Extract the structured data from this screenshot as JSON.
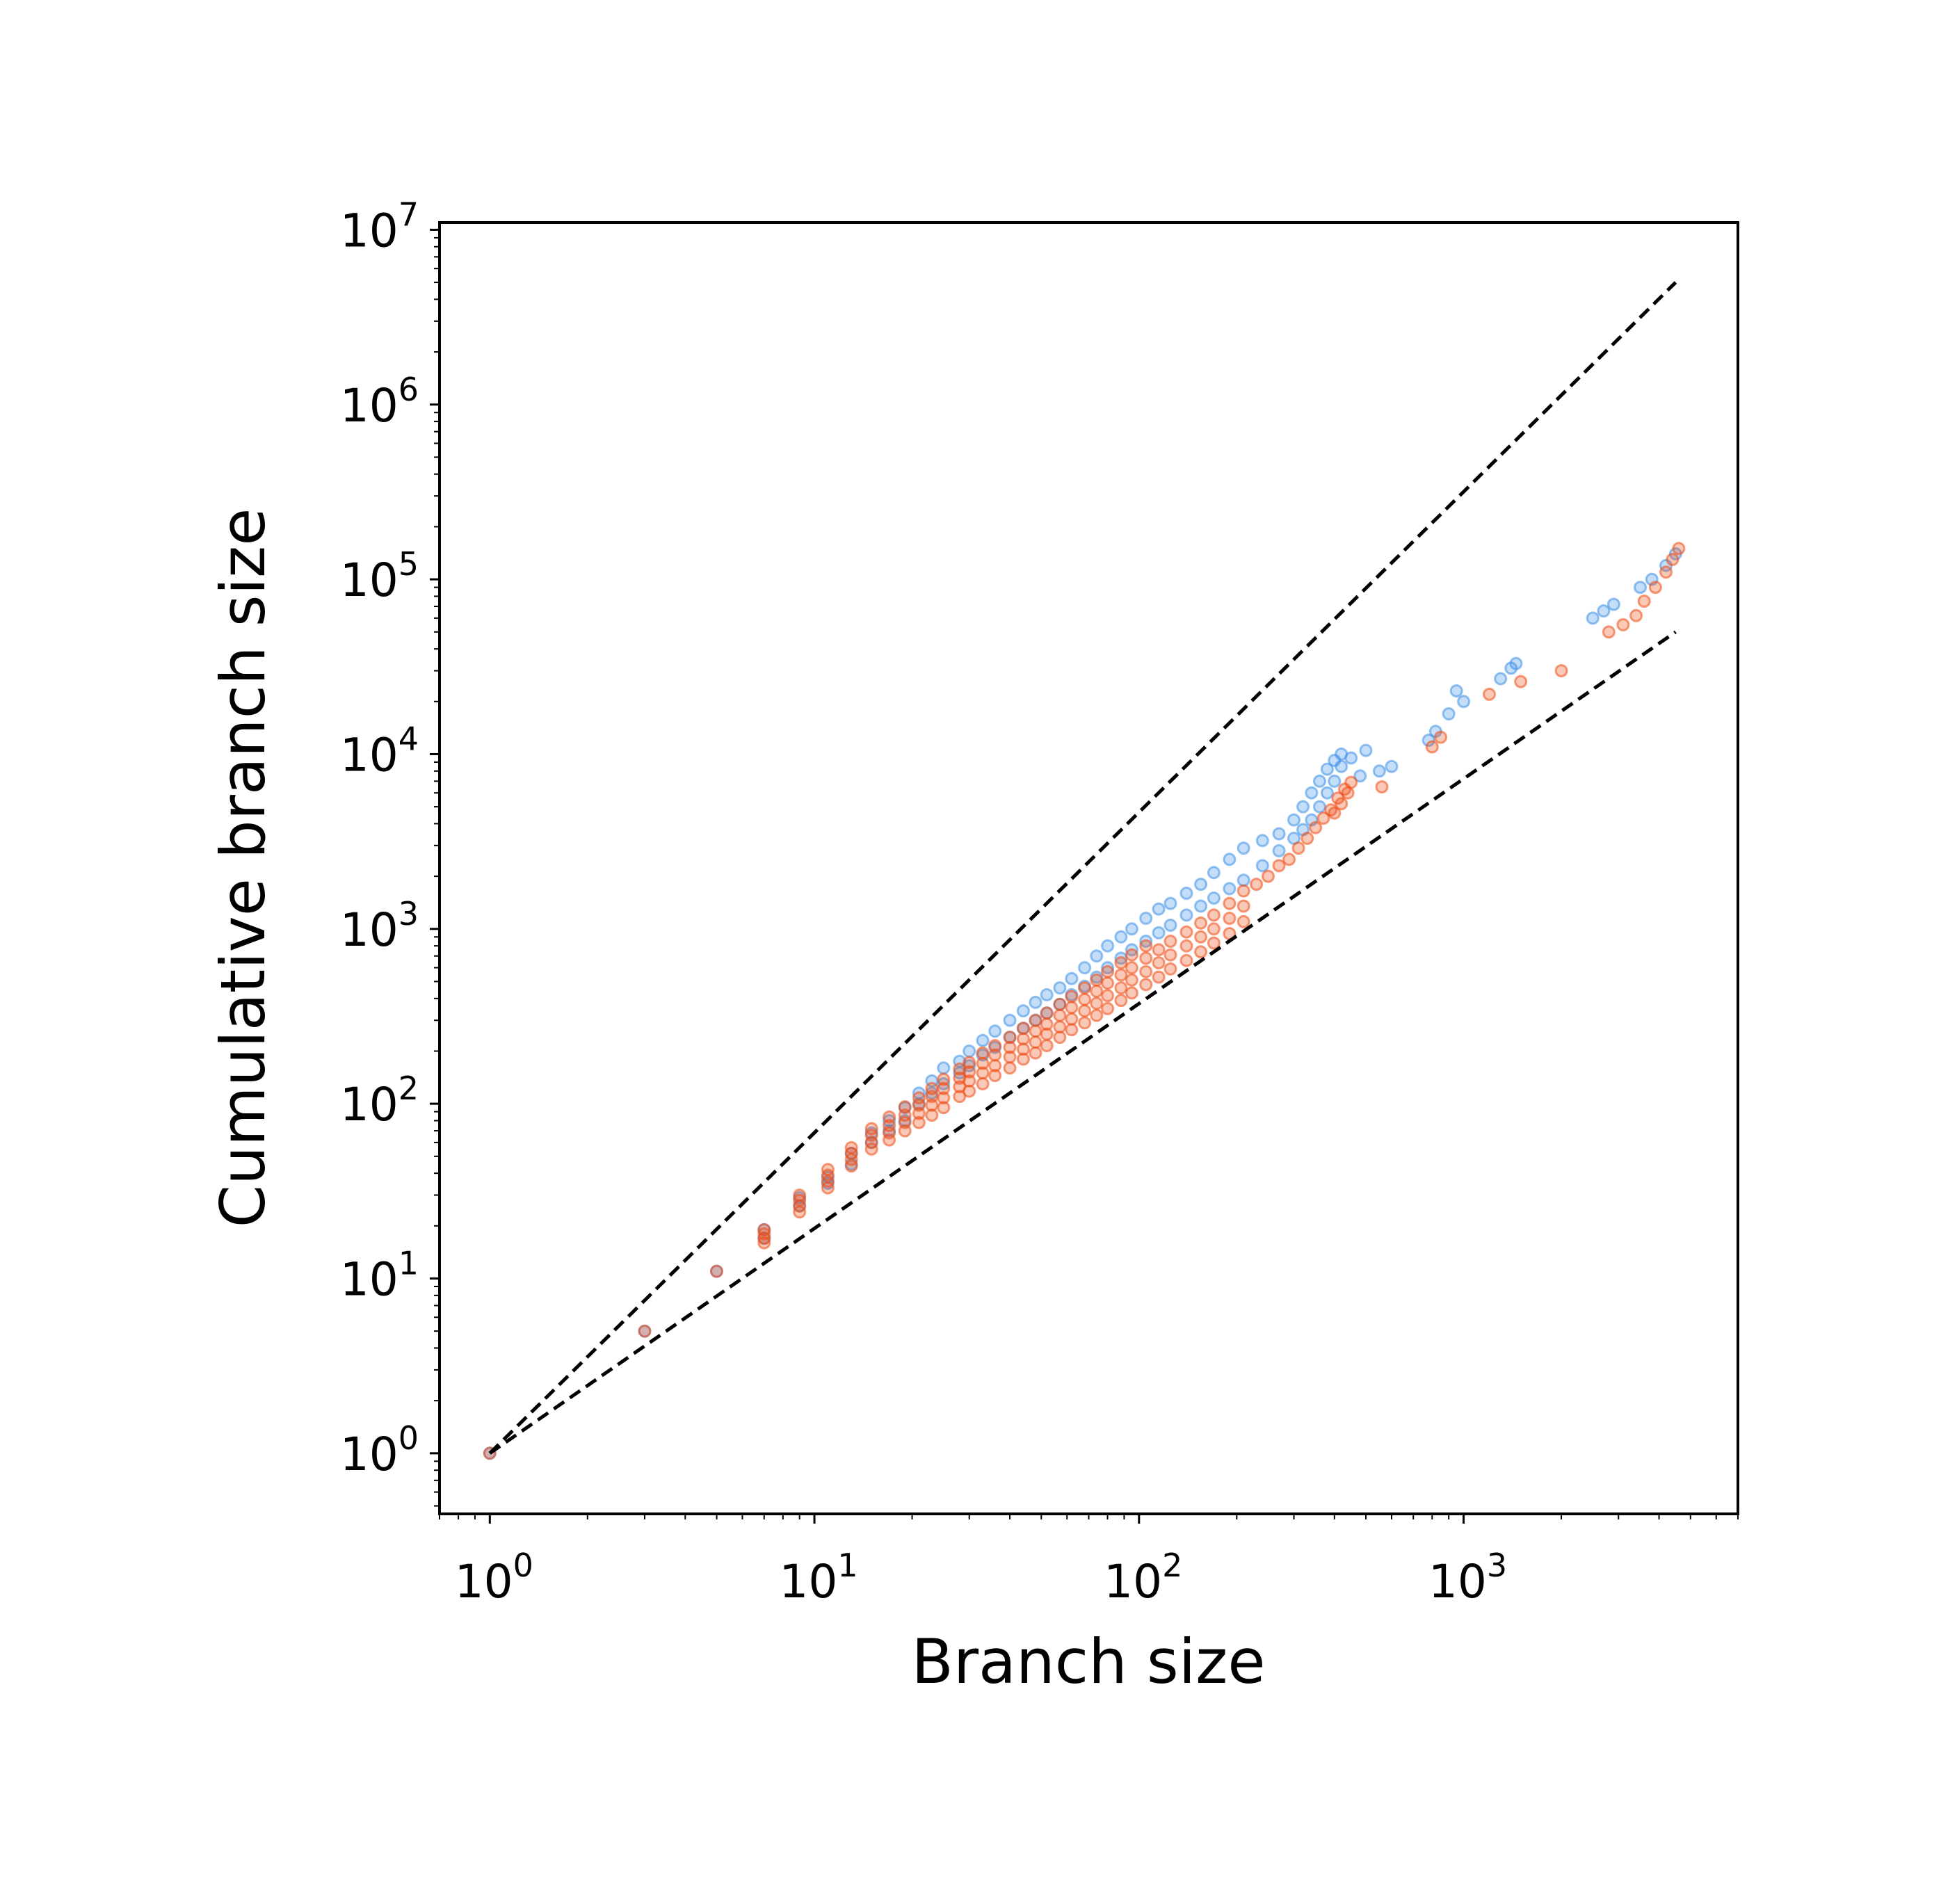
{
  "chart_data": {
    "type": "scatter",
    "title": "",
    "xlabel": "Branch size",
    "ylabel": "Cumulative branch size",
    "xscale": "log",
    "yscale": "log",
    "xlim": [
      0.7,
      7000
    ],
    "ylim": [
      0.45,
      11000000
    ],
    "x_ticks": [
      {
        "base": "10",
        "exp": "0"
      },
      {
        "base": "10",
        "exp": "1"
      },
      {
        "base": "10",
        "exp": "2"
      },
      {
        "base": "10",
        "exp": "3"
      }
    ],
    "y_ticks": [
      {
        "base": "10",
        "exp": "0"
      },
      {
        "base": "10",
        "exp": "1"
      },
      {
        "base": "10",
        "exp": "2"
      },
      {
        "base": "10",
        "exp": "3"
      },
      {
        "base": "10",
        "exp": "4"
      },
      {
        "base": "10",
        "exp": "5"
      },
      {
        "base": "10",
        "exp": "6"
      },
      {
        "base": "10",
        "exp": "7"
      }
    ],
    "grid": false,
    "legend": "none",
    "reference_lines": [
      {
        "style": "dashed",
        "color": "#000000",
        "x": [
          1,
          4500
        ],
        "y": [
          1,
          5000000
        ]
      },
      {
        "style": "dashed",
        "color": "#000000",
        "x": [
          1,
          4500
        ],
        "y": [
          1,
          50000
        ]
      }
    ],
    "series": [
      {
        "color": "#3d8fe8",
        "points": [
          [
            1,
            1
          ],
          [
            3,
            5
          ],
          [
            5,
            11
          ],
          [
            7,
            17
          ],
          [
            7,
            19
          ],
          [
            9,
            26
          ],
          [
            9,
            29
          ],
          [
            11,
            35
          ],
          [
            11,
            38
          ],
          [
            13,
            45
          ],
          [
            13,
            52
          ],
          [
            15,
            60
          ],
          [
            15,
            68
          ],
          [
            17,
            70
          ],
          [
            17,
            80
          ],
          [
            19,
            80
          ],
          [
            19,
            95
          ],
          [
            21,
            100
          ],
          [
            21,
            115
          ],
          [
            23,
            115
          ],
          [
            23,
            135
          ],
          [
            25,
            130
          ],
          [
            25,
            160
          ],
          [
            28,
            150
          ],
          [
            28,
            175
          ],
          [
            30,
            165
          ],
          [
            30,
            200
          ],
          [
            33,
            190
          ],
          [
            33,
            230
          ],
          [
            36,
            210
          ],
          [
            36,
            260
          ],
          [
            40,
            240
          ],
          [
            40,
            300
          ],
          [
            44,
            270
          ],
          [
            44,
            340
          ],
          [
            48,
            300
          ],
          [
            48,
            380
          ],
          [
            52,
            330
          ],
          [
            52,
            420
          ],
          [
            57,
            370
          ],
          [
            57,
            460
          ],
          [
            62,
            420
          ],
          [
            62,
            520
          ],
          [
            68,
            470
          ],
          [
            68,
            600
          ],
          [
            74,
            530
          ],
          [
            74,
            700
          ],
          [
            80,
            600
          ],
          [
            80,
            800
          ],
          [
            88,
            680
          ],
          [
            88,
            900
          ],
          [
            95,
            760
          ],
          [
            95,
            1000
          ],
          [
            105,
            850
          ],
          [
            105,
            1150
          ],
          [
            115,
            950
          ],
          [
            115,
            1300
          ],
          [
            125,
            1050
          ],
          [
            125,
            1400
          ],
          [
            140,
            1200
          ],
          [
            140,
            1600
          ],
          [
            155,
            1350
          ],
          [
            155,
            1800
          ],
          [
            170,
            1500
          ],
          [
            170,
            2100
          ],
          [
            190,
            1700
          ],
          [
            190,
            2500
          ],
          [
            210,
            1900
          ],
          [
            210,
            2900
          ],
          [
            240,
            2300
          ],
          [
            240,
            3200
          ],
          [
            270,
            2800
          ],
          [
            270,
            3500
          ],
          [
            300,
            3300
          ],
          [
            300,
            4200
          ],
          [
            320,
            3700
          ],
          [
            320,
            5000
          ],
          [
            340,
            4200
          ],
          [
            340,
            6000
          ],
          [
            360,
            5000
          ],
          [
            360,
            7000
          ],
          [
            380,
            6000
          ],
          [
            380,
            8200
          ],
          [
            400,
            7000
          ],
          [
            400,
            9200
          ],
          [
            420,
            8500
          ],
          [
            420,
            10000
          ],
          [
            450,
            9500
          ],
          [
            500,
            10500
          ],
          [
            480,
            7500
          ],
          [
            550,
            8000
          ],
          [
            600,
            8500
          ],
          [
            780,
            12000
          ],
          [
            820,
            13500
          ],
          [
            900,
            17000
          ],
          [
            950,
            23000
          ],
          [
            1000,
            20000
          ],
          [
            1300,
            27000
          ],
          [
            1400,
            31000
          ],
          [
            1450,
            33000
          ],
          [
            2500,
            60000
          ],
          [
            2700,
            66000
          ],
          [
            2900,
            72000
          ],
          [
            3500,
            90000
          ],
          [
            3800,
            100000
          ],
          [
            4200,
            120000
          ],
          [
            4500,
            140000
          ]
        ]
      },
      {
        "color": "#f04a12",
        "points": [
          [
            1,
            1
          ],
          [
            3,
            5
          ],
          [
            5,
            11
          ],
          [
            7,
            16
          ],
          [
            7,
            17
          ],
          [
            7,
            18
          ],
          [
            7,
            19
          ],
          [
            9,
            24
          ],
          [
            9,
            26
          ],
          [
            9,
            28
          ],
          [
            9,
            30
          ],
          [
            11,
            33
          ],
          [
            11,
            36
          ],
          [
            11,
            39
          ],
          [
            11,
            42
          ],
          [
            13,
            44
          ],
          [
            13,
            48
          ],
          [
            13,
            52
          ],
          [
            13,
            56
          ],
          [
            15,
            55
          ],
          [
            15,
            60
          ],
          [
            15,
            66
          ],
          [
            15,
            72
          ],
          [
            17,
            62
          ],
          [
            17,
            68
          ],
          [
            17,
            75
          ],
          [
            17,
            84
          ],
          [
            19,
            70
          ],
          [
            19,
            78
          ],
          [
            19,
            86
          ],
          [
            19,
            96
          ],
          [
            21,
            78
          ],
          [
            21,
            88
          ],
          [
            21,
            98
          ],
          [
            21,
            108
          ],
          [
            23,
            86
          ],
          [
            23,
            98
          ],
          [
            23,
            110
          ],
          [
            23,
            122
          ],
          [
            25,
            95
          ],
          [
            25,
            108
          ],
          [
            25,
            122
          ],
          [
            25,
            138
          ],
          [
            28,
            110
          ],
          [
            28,
            125
          ],
          [
            28,
            140
          ],
          [
            28,
            158
          ],
          [
            30,
            118
          ],
          [
            30,
            135
          ],
          [
            30,
            152
          ],
          [
            30,
            172
          ],
          [
            33,
            130
          ],
          [
            33,
            150
          ],
          [
            33,
            170
          ],
          [
            33,
            195
          ],
          [
            36,
            145
          ],
          [
            36,
            165
          ],
          [
            36,
            190
          ],
          [
            36,
            215
          ],
          [
            40,
            160
          ],
          [
            40,
            185
          ],
          [
            40,
            210
          ],
          [
            40,
            240
          ],
          [
            44,
            180
          ],
          [
            44,
            205
          ],
          [
            44,
            235
          ],
          [
            44,
            270
          ],
          [
            48,
            195
          ],
          [
            48,
            225
          ],
          [
            48,
            260
          ],
          [
            48,
            300
          ],
          [
            52,
            215
          ],
          [
            52,
            250
          ],
          [
            52,
            285
          ],
          [
            52,
            330
          ],
          [
            57,
            240
          ],
          [
            57,
            275
          ],
          [
            57,
            320
          ],
          [
            57,
            370
          ],
          [
            62,
            265
          ],
          [
            62,
            305
          ],
          [
            62,
            355
          ],
          [
            62,
            410
          ],
          [
            68,
            290
          ],
          [
            68,
            340
          ],
          [
            68,
            395
          ],
          [
            68,
            460
          ],
          [
            74,
            320
          ],
          [
            74,
            375
          ],
          [
            74,
            440
          ],
          [
            74,
            510
          ],
          [
            80,
            350
          ],
          [
            80,
            415
          ],
          [
            80,
            490
          ],
          [
            80,
            570
          ],
          [
            88,
            390
          ],
          [
            88,
            460
          ],
          [
            88,
            545
          ],
          [
            88,
            640
          ],
          [
            95,
            430
          ],
          [
            95,
            510
          ],
          [
            95,
            600
          ],
          [
            95,
            710
          ],
          [
            105,
            480
          ],
          [
            105,
            570
          ],
          [
            105,
            680
          ],
          [
            105,
            800
          ],
          [
            115,
            530
          ],
          [
            115,
            640
          ],
          [
            115,
            760
          ],
          [
            125,
            590
          ],
          [
            125,
            710
          ],
          [
            125,
            850
          ],
          [
            140,
            660
          ],
          [
            140,
            800
          ],
          [
            140,
            960
          ],
          [
            155,
            740
          ],
          [
            155,
            900
          ],
          [
            155,
            1080
          ],
          [
            170,
            830
          ],
          [
            170,
            1000
          ],
          [
            170,
            1200
          ],
          [
            190,
            940
          ],
          [
            190,
            1150
          ],
          [
            190,
            1400
          ],
          [
            210,
            1100
          ],
          [
            210,
            1350
          ],
          [
            210,
            1650
          ],
          [
            230,
            1800
          ],
          [
            250,
            2000
          ],
          [
            270,
            2300
          ],
          [
            290,
            2500
          ],
          [
            310,
            2900
          ],
          [
            330,
            3300
          ],
          [
            350,
            3800
          ],
          [
            370,
            4300
          ],
          [
            390,
            4800
          ],
          [
            410,
            5600
          ],
          [
            430,
            6300
          ],
          [
            450,
            6900
          ],
          [
            400,
            4600
          ],
          [
            420,
            5200
          ],
          [
            440,
            6000
          ],
          [
            560,
            6500
          ],
          [
            800,
            11000
          ],
          [
            850,
            12500
          ],
          [
            1200,
            22000
          ],
          [
            1500,
            26000
          ],
          [
            2000,
            30000
          ],
          [
            2800,
            50000
          ],
          [
            3100,
            55000
          ],
          [
            3400,
            62000
          ],
          [
            3600,
            75000
          ],
          [
            3900,
            90000
          ],
          [
            4200,
            110000
          ],
          [
            4400,
            130000
          ],
          [
            4600,
            150000
          ]
        ]
      }
    ]
  }
}
